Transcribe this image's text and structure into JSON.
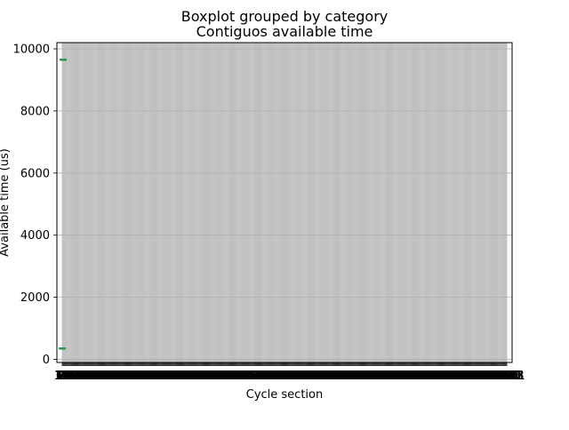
{
  "chart_data": {
    "type": "boxplot",
    "suptitle": "Boxplot grouped by category",
    "title": "Contiguos available time",
    "xlabel": "Cycle section",
    "ylabel": "Available time (us)",
    "ylim": [
      -100,
      10200
    ],
    "yticks": [
      0,
      2000,
      4000,
      6000,
      8000,
      10000
    ],
    "grid": true,
    "categories": [
      "31",
      "62",
      "93",
      "125",
      "156",
      "187",
      "218",
      "250",
      "281",
      "312",
      "343",
      "375",
      "406",
      "437",
      "468",
      "500",
      "531",
      "562",
      "593",
      "625",
      "656",
      "687",
      "718",
      "750",
      "781",
      "812",
      "843",
      "875",
      "906",
      "937",
      "968",
      "1000",
      "1031",
      "1062",
      "1093",
      "1125",
      "1156",
      "1187",
      "1218",
      "1250",
      "1281",
      "1312",
      "1343",
      "1375",
      "1406",
      "1437",
      "1468",
      "1500",
      "1531",
      "1562",
      "1593",
      "1625",
      "1656",
      "1687",
      "1718",
      "1750",
      "1781",
      "1812",
      "1843",
      "1875",
      "1906",
      "1937",
      "1968",
      "2000",
      "2031",
      "2062",
      "2093",
      "2125",
      "2156",
      "2187",
      "2218",
      "2250",
      "2281",
      "2312",
      "2343",
      "2375",
      "2406",
      "2437",
      "2468",
      "2500",
      "2531",
      "2562",
      "2593",
      "2625",
      "2656",
      "2687",
      "2718",
      "2750",
      "2781",
      "2812",
      "2843",
      "2875",
      "2906",
      "2937",
      "2968",
      "3000",
      "3031",
      "3062",
      "3093",
      "3125",
      "3156",
      "3187",
      "3218",
      "3250",
      "3281",
      "3312",
      "3343",
      "3375",
      "3406",
      "3437",
      "3468",
      "3500",
      "3531",
      "3562",
      "3593",
      "3625",
      "3656",
      "3687",
      "3718",
      "3750",
      "3781",
      "3812",
      "3843",
      "3875",
      "3906",
      "3937",
      "3968",
      "4000",
      "4031",
      "4062",
      "4093",
      "4125",
      "4156",
      "4187",
      "4218",
      "4250",
      "4281",
      "4312",
      "4343",
      "4375",
      "4406",
      "4437",
      "4468",
      "4500",
      "4531",
      "4562",
      "4593",
      "4625",
      "4656",
      "4687",
      "4718",
      "4750",
      "4781",
      "4812",
      "4843",
      "4875",
      "4906",
      "4937",
      "4968",
      "5000",
      "5031",
      "5062",
      "5093",
      "5125",
      "5156",
      "5187",
      "5218",
      "5250",
      "5281",
      "5312",
      "5343",
      "5375",
      "5406",
      "5437",
      "5468",
      "5500",
      "5531",
      "5562",
      "5593",
      "5625",
      "5656",
      "5687",
      "5718",
      "5750",
      "5781",
      "5812",
      "5843",
      "5875",
      "5906",
      "5937",
      "5968",
      "6000",
      "6031",
      "6062",
      "6093",
      "6125",
      "6156",
      "6187",
      "6218",
      "6250",
      "6281",
      "6312",
      "6343",
      "6375",
      "6406",
      "6437",
      "6468",
      "6500",
      "6531",
      "6562",
      "6593",
      "6625",
      "6656",
      "6687",
      "6718",
      "6750",
      "6781",
      "6812",
      "6843",
      "6875",
      "6906",
      "6937",
      "6968",
      "7000",
      "7031",
      "7062",
      "7093",
      "7125",
      "7156",
      "7187",
      "7218",
      "7250",
      "7281",
      "7312",
      "7343",
      "7375",
      "7406",
      "7437",
      "7468",
      "7500",
      "7531",
      "7562",
      "7593",
      "7625",
      "7656",
      "7687",
      "7718",
      "7750",
      "7781",
      "7812",
      "7843",
      "7875",
      "7906",
      "7937",
      "7968",
      "8000",
      "8031",
      "8062",
      "8093",
      "8125",
      "8156",
      "8187",
      "8218",
      "8250",
      "8281",
      "8312",
      "8343",
      "8375",
      "8406",
      "8437",
      "8468",
      "8500",
      "8531",
      "8562",
      "8593",
      "8625",
      "8656",
      "8687",
      "8718",
      "8750",
      "8781",
      "8812",
      "8843",
      "8875",
      "8906",
      "8937",
      "8968",
      "9000",
      "9031",
      "9062",
      "9093",
      "9125",
      "9156",
      "9187",
      "9218",
      "9250",
      "9281",
      "9312",
      "9343",
      "9375",
      "9406",
      "9437",
      "9468",
      "9500",
      "9531",
      "9562",
      "9593",
      "9625",
      "9656",
      "9687",
      "9718",
      "9750",
      "9781",
      "9812",
      "9843",
      "9875",
      "9906",
      "9937",
      "9968",
      "10000",
      "10031",
      "10062",
      "10093",
      "10125",
      "10156",
      "10187",
      "10218",
      "10250",
      "10281",
      "10312",
      "10343",
      "10375",
      "10406",
      "10437",
      "10468",
      "10500",
      "10531",
      "10562",
      "10593",
      "10625",
      "10656",
      "10687",
      "10718",
      "10750",
      "10781",
      "10812",
      "10843",
      "10875",
      "10906",
      "10937",
      "10968",
      "11000",
      "11031",
      "11062",
      "11093",
      "11125",
      "11156",
      "11187",
      "11218",
      "11250",
      "11281",
      "11312",
      "11343",
      "11375",
      "11406",
      "11437",
      "11468",
      "11500",
      "11531",
      "11562",
      "11593",
      "11625",
      "11656",
      "11687",
      "11718",
      "11750",
      "11781",
      "11812",
      "11843",
      "11875",
      "11906",
      "11937",
      "11968",
      "12000",
      "12031",
      "12062",
      "12093",
      "12125",
      "12156",
      "12187",
      "12218",
      "12250",
      "12281",
      "12312",
      "12343",
      "12375",
      "12406",
      "12437",
      "12468",
      "12500",
      "12531",
      "12562",
      "12593",
      "12625",
      "12656",
      "12687",
      "12718",
      "12750",
      "12781",
      "12812",
      "12843",
      "12875",
      "12906",
      "12937",
      "12968",
      "13000",
      "13031",
      "13062",
      "13093",
      "13125",
      "13156",
      "13187",
      "13218",
      "13250",
      "13281",
      "13312",
      "13343",
      "13375",
      "13406",
      "13437",
      "13468",
      "13500",
      "13531",
      "13562",
      "13593",
      "13625",
      "13656",
      "13687",
      "13718",
      "13750",
      "13781",
      "13812",
      "13843",
      "13875",
      "13906",
      "13937",
      "13968",
      "14000",
      "14031",
      "14062",
      "14093",
      "14125",
      "14156",
      "14187",
      "14218",
      "14250",
      "14281",
      "14312",
      "14343",
      "14375",
      "14406",
      "14437",
      "14468",
      "14500",
      "14531",
      "14562",
      "14593",
      "14625",
      "14656",
      "14687",
      "14718",
      "14750",
      "14781",
      "14812",
      "14843",
      "14875",
      "14906",
      "14937",
      "14968",
      "15000",
      "15031",
      "15062",
      "15093",
      "15101"
    ],
    "boxes": [
      {
        "category": "31",
        "value": 350
      },
      {
        "category": "62",
        "value": 9650
      }
    ],
    "colors": {
      "grid": "#b0b0b0",
      "axis": "#000000",
      "median": "#2ca02c",
      "box": "#1f77b4"
    }
  }
}
